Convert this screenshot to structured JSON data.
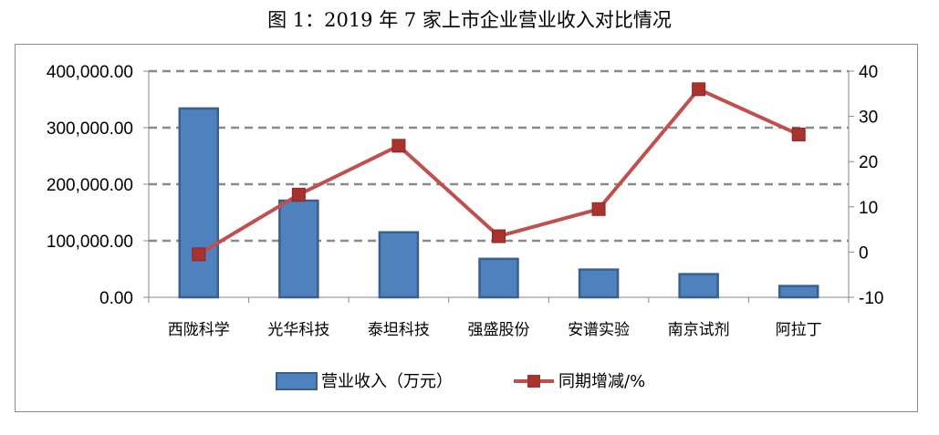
{
  "chart_data": {
    "type": "bar",
    "title": "图 1：2019 年 7 家上市企业营业收入对比情况",
    "categories": [
      "西陇科学",
      "光华科技",
      "泰坦科技",
      "强盛股份",
      "安谱实验",
      "南京试剂",
      "阿拉丁"
    ],
    "series": [
      {
        "name": "营业收入（万元）",
        "type": "bar",
        "axis": "left",
        "values": [
          334000,
          171000,
          115000,
          68000,
          49000,
          41000,
          20000
        ]
      },
      {
        "name": "同期增减/%",
        "type": "line",
        "axis": "right",
        "values": [
          -0.5,
          12.7,
          23.5,
          3.5,
          9.5,
          36.0,
          26.0
        ]
      }
    ],
    "y_left": {
      "min": 0,
      "max": 400000,
      "step": 100000,
      "tick_labels": [
        "0.00",
        "100,000.00",
        "200,000.00",
        "300,000.00",
        "400,000.00"
      ]
    },
    "y_right": {
      "min": -10,
      "max": 40,
      "step": 10,
      "tick_labels": [
        "-10",
        "0",
        "10",
        "20",
        "30",
        "40"
      ]
    },
    "gridlines": true,
    "legend_position": "bottom",
    "colors": {
      "bar": "#4f81bd",
      "bar_border": "#3a5f8f",
      "line": "#c0504d",
      "marker": "#a9322f",
      "grid": "#8a8a8a",
      "axis": "#888888"
    }
  }
}
